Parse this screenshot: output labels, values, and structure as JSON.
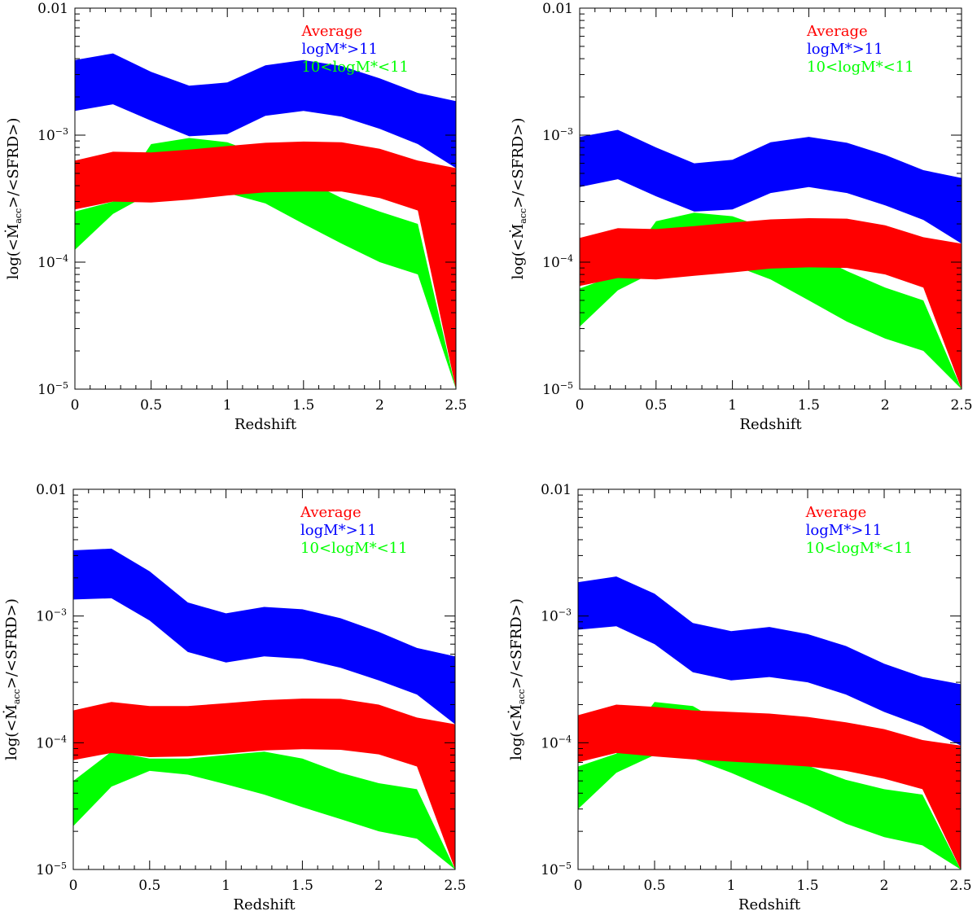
{
  "chart_data": [
    {
      "type": "area",
      "panel": "top-left",
      "xlabel": "Redshift",
      "ylabel_parts": [
        "log(<",
        "M",
        "acc",
        ">/<SFRD>)"
      ],
      "xlim": [
        0,
        2.5
      ],
      "ylim": [
        1e-05,
        0.01
      ],
      "yscale": "log",
      "x_ticks": [
        "0",
        "0.5",
        "1",
        "1.5",
        "2",
        "2.5"
      ],
      "y_ticks": [
        {
          "base": "0.01",
          "exp": ""
        },
        {
          "base": "10",
          "exp": "−3"
        },
        {
          "base": "10",
          "exp": "−4"
        },
        {
          "base": "10",
          "exp": "−5"
        }
      ],
      "legend": [
        {
          "label": "Average",
          "color": "#ff0000"
        },
        {
          "label": "logM*>11",
          "color": "#0000ff"
        },
        {
          "label": "10<logM*<11",
          "color": "#00ff00"
        }
      ],
      "legend_position": "top-right",
      "x": [
        0,
        0.25,
        0.5,
        0.75,
        1,
        1.25,
        1.5,
        1.75,
        2,
        2.25,
        2.5
      ],
      "series": [
        {
          "name": "10<logM*<11",
          "color": "#00ff00",
          "lower": [
            0.000125,
            0.00024,
            0.00035,
            0.00036,
            0.00035,
            0.00029,
            0.0002,
            0.00014,
            0.0001,
            8e-05,
            1e-05
          ],
          "upper": [
            0.00025,
            0.0003,
            0.00085,
            0.00095,
            0.00088,
            0.00068,
            0.00045,
            0.00032,
            0.00025,
            0.0002,
            1e-05
          ]
        },
        {
          "name": "logM*>11",
          "color": "#0000ff",
          "lower": [
            0.00155,
            0.00175,
            0.0013,
            0.00098,
            0.00102,
            0.00142,
            0.00155,
            0.0014,
            0.00112,
            0.00085,
            0.00055
          ],
          "upper": [
            0.0039,
            0.0044,
            0.00315,
            0.00245,
            0.0026,
            0.00355,
            0.0039,
            0.0035,
            0.0028,
            0.00215,
            0.00185
          ]
        },
        {
          "name": "Average",
          "color": "#ff0000",
          "lower": [
            0.00026,
            0.0003,
            0.000295,
            0.00031,
            0.000335,
            0.000355,
            0.00036,
            0.00036,
            0.00032,
            0.000255,
            1e-05
          ],
          "upper": [
            0.00063,
            0.00074,
            0.00073,
            0.00077,
            0.00082,
            0.00087,
            0.00089,
            0.00088,
            0.00078,
            0.00063,
            0.00055
          ]
        }
      ]
    },
    {
      "type": "area",
      "panel": "top-right",
      "xlabel": "Redshift",
      "ylabel_parts": [
        "log(<",
        "M",
        "acc",
        ">/<SFRD>)"
      ],
      "xlim": [
        0,
        2.5
      ],
      "ylim": [
        1e-05,
        0.01
      ],
      "yscale": "log",
      "x_ticks": [
        "0",
        "0.5",
        "1",
        "1.5",
        "2",
        "2.5"
      ],
      "y_ticks": [
        {
          "base": "0.01",
          "exp": ""
        },
        {
          "base": "10",
          "exp": "−3"
        },
        {
          "base": "10",
          "exp": "−4"
        },
        {
          "base": "10",
          "exp": "−5"
        }
      ],
      "legend": [
        {
          "label": "Average",
          "color": "#ff0000"
        },
        {
          "label": "logM*>11",
          "color": "#0000ff"
        },
        {
          "label": "10<logM*<11",
          "color": "#00ff00"
        }
      ],
      "legend_position": "top-right",
      "x": [
        0,
        0.25,
        0.5,
        0.75,
        1,
        1.25,
        1.5,
        1.75,
        2,
        2.25,
        2.5
      ],
      "series": [
        {
          "name": "10<logM*<11",
          "color": "#00ff00",
          "lower": [
            3.1e-05,
            6e-05,
            8.5e-05,
            9.5e-05,
            9.5e-05,
            7.3e-05,
            5e-05,
            3.4e-05,
            2.5e-05,
            2e-05,
            1e-05
          ],
          "upper": [
            6.2e-05,
            8e-05,
            0.00021,
            0.000245,
            0.00023,
            0.00018,
            0.00012,
            8.5e-05,
            6.3e-05,
            5e-05,
            1e-05
          ]
        },
        {
          "name": "logM*>11",
          "color": "#0000ff",
          "lower": [
            0.00039,
            0.00045,
            0.00033,
            0.00025,
            0.00026,
            0.00035,
            0.00039,
            0.00035,
            0.00028,
            0.000215,
            0.00014
          ],
          "upper": [
            0.00097,
            0.0011,
            0.0008,
            0.0006,
            0.00064,
            0.00088,
            0.00097,
            0.00087,
            0.0007,
            0.00053,
            0.00046
          ]
        },
        {
          "name": "Average",
          "color": "#ff0000",
          "lower": [
            6.5e-05,
            7.5e-05,
            7.3e-05,
            7.8e-05,
            8.3e-05,
            8.9e-05,
            9.1e-05,
            9e-05,
            8e-05,
            6.3e-05,
            1e-05
          ],
          "upper": [
            0.000155,
            0.000185,
            0.000182,
            0.000192,
            0.000205,
            0.000217,
            0.000222,
            0.00022,
            0.000195,
            0.000157,
            0.00014
          ]
        }
      ]
    },
    {
      "type": "area",
      "panel": "bottom-left",
      "xlabel": "Redshift",
      "ylabel_parts": [
        "log(<",
        "M",
        "acc",
        ">/<SFRD>)"
      ],
      "xlim": [
        0,
        2.5
      ],
      "ylim": [
        1e-05,
        0.01
      ],
      "yscale": "log",
      "x_ticks": [
        "0",
        "0.5",
        "1",
        "1.5",
        "2",
        "2.5"
      ],
      "y_ticks": [
        {
          "base": "0.01",
          "exp": ""
        },
        {
          "base": "10",
          "exp": "−3"
        },
        {
          "base": "10",
          "exp": "−4"
        },
        {
          "base": "10",
          "exp": "−5"
        }
      ],
      "legend": [
        {
          "label": "Average",
          "color": "#ff0000"
        },
        {
          "label": "logM*>11",
          "color": "#0000ff"
        },
        {
          "label": "10<logM*<11",
          "color": "#00ff00"
        }
      ],
      "legend_position": "top-right",
      "x": [
        0,
        0.25,
        0.5,
        0.75,
        1,
        1.25,
        1.5,
        1.75,
        2,
        2.25,
        2.5
      ],
      "series": [
        {
          "name": "10<logM*<11",
          "color": "#00ff00",
          "lower": [
            2.2e-05,
            4.5e-05,
            6e-05,
            5.6e-05,
            4.7e-05,
            3.9e-05,
            3.1e-05,
            2.5e-05,
            2e-05,
            1.75e-05,
            1e-05
          ],
          "upper": [
            5e-05,
            8.5e-05,
            7.5e-05,
            7.5e-05,
            8e-05,
            8.5e-05,
            7.5e-05,
            5.8e-05,
            4.8e-05,
            4.3e-05,
            1e-05
          ]
        },
        {
          "name": "logM*>11",
          "color": "#0000ff",
          "lower": [
            0.00135,
            0.00138,
            0.00092,
            0.00052,
            0.00043,
            0.00048,
            0.00046,
            0.00039,
            0.00031,
            0.00024,
            0.00014
          ],
          "upper": [
            0.0033,
            0.0034,
            0.00225,
            0.00128,
            0.00105,
            0.00118,
            0.00113,
            0.00096,
            0.00075,
            0.00056,
            0.00048
          ]
        },
        {
          "name": "Average",
          "color": "#ff0000",
          "lower": [
            7.3e-05,
            8.3e-05,
            7.7e-05,
            7.8e-05,
            8.2e-05,
            8.7e-05,
            8.9e-05,
            8.8e-05,
            8.1e-05,
            6.5e-05,
            1e-05
          ],
          "upper": [
            0.00018,
            0.00021,
            0.000195,
            0.000195,
            0.000205,
            0.000217,
            0.000223,
            0.000222,
            0.0002,
            0.000158,
            0.00014
          ]
        }
      ]
    },
    {
      "type": "area",
      "panel": "bottom-right",
      "xlabel": "Redshift",
      "ylabel_parts": [
        "log(<",
        "M",
        "acc",
        ">/<SFRD>)"
      ],
      "xlim": [
        0,
        2.5
      ],
      "ylim": [
        1e-05,
        0.01
      ],
      "yscale": "log",
      "x_ticks": [
        "0",
        "0.5",
        "1",
        "1.5",
        "2",
        "2.5"
      ],
      "y_ticks": [
        {
          "base": "0.01",
          "exp": ""
        },
        {
          "base": "10",
          "exp": "−3"
        },
        {
          "base": "10",
          "exp": "−4"
        },
        {
          "base": "10",
          "exp": "−5"
        }
      ],
      "legend": [
        {
          "label": "Average",
          "color": "#ff0000"
        },
        {
          "label": "logM*>11",
          "color": "#0000ff"
        },
        {
          "label": "10<logM*<11",
          "color": "#00ff00"
        }
      ],
      "legend_position": "top-right",
      "x": [
        0,
        0.25,
        0.5,
        0.75,
        1,
        1.25,
        1.5,
        1.75,
        2,
        2.25,
        2.5
      ],
      "series": [
        {
          "name": "10<logM*<11",
          "color": "#00ff00",
          "lower": [
            3e-05,
            5.8e-05,
            8e-05,
            7.5e-05,
            5.8e-05,
            4.3e-05,
            3.2e-05,
            2.3e-05,
            1.8e-05,
            1.55e-05,
            1e-05
          ],
          "upper": [
            6.5e-05,
            8.2e-05,
            0.00021,
            0.000195,
            0.00013,
            9e-05,
            6.6e-05,
            5.1e-05,
            4.3e-05,
            3.9e-05,
            1e-05
          ]
        },
        {
          "name": "logM*>11",
          "color": "#0000ff",
          "lower": [
            0.00078,
            0.00083,
            0.0006,
            0.00036,
            0.00031,
            0.00033,
            0.0003,
            0.00024,
            0.000175,
            0.000135,
            9.5e-05
          ],
          "upper": [
            0.00185,
            0.00205,
            0.0015,
            0.00088,
            0.00076,
            0.00082,
            0.00072,
            0.00058,
            0.00042,
            0.00033,
            0.00029
          ]
        },
        {
          "name": "Average",
          "color": "#ff0000",
          "lower": [
            7e-05,
            8.3e-05,
            7.8e-05,
            7.4e-05,
            7.1e-05,
            6.8e-05,
            6.5e-05,
            6e-05,
            5.2e-05,
            4.3e-05,
            1e-05
          ],
          "upper": [
            0.000165,
            0.0002,
            0.000192,
            0.00018,
            0.000175,
            0.00017,
            0.00016,
            0.000145,
            0.000128,
            0.000105,
            9.5e-05
          ]
        }
      ]
    }
  ]
}
